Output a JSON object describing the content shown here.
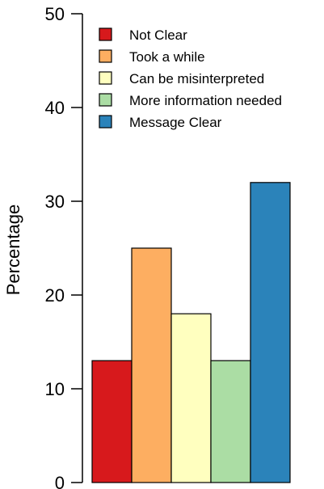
{
  "chart_data": {
    "type": "bar",
    "title": "",
    "xlabel": "",
    "ylabel": "Percentage",
    "ylim": [
      0,
      50
    ],
    "yticks": [
      0,
      10,
      20,
      30,
      40,
      50
    ],
    "grid": false,
    "legend_position": "top-left",
    "series": [
      {
        "name": "Not Clear",
        "value": 13,
        "color": "#D7191C"
      },
      {
        "name": "Took a while",
        "value": 25,
        "color": "#FDAE61"
      },
      {
        "name": "Can be misinterpreted",
        "value": 18,
        "color": "#FFFFBF"
      },
      {
        "name": "More information needed",
        "value": 13,
        "color": "#ABDDA4"
      },
      {
        "name": "Message Clear",
        "value": 32,
        "color": "#2B83BA"
      }
    ]
  }
}
